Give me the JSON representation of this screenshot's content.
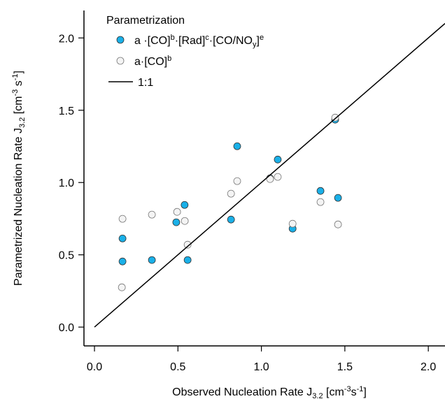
{
  "chart_data": {
    "type": "scatter",
    "xlabel": [
      {
        "text": "Observed Nucleation Rate J"
      },
      {
        "text": "3.2",
        "shift": "sub"
      },
      {
        "text": " [cm"
      },
      {
        "text": "-3",
        "shift": "super"
      },
      {
        "text": "s"
      },
      {
        "text": "-1",
        "shift": "super"
      },
      {
        "text": "]"
      }
    ],
    "ylabel": [
      {
        "text": "Parametrized Nucleation Rate J"
      },
      {
        "text": "3.2",
        "shift": "sub"
      },
      {
        "text": " [cm"
      },
      {
        "text": "-3",
        "shift": "super"
      },
      {
        "text": " s"
      },
      {
        "text": "-1",
        "shift": "super"
      },
      {
        "text": "]"
      }
    ],
    "xlim": [
      -0.063,
      2.1
    ],
    "ylim": [
      -0.13,
      2.19
    ],
    "xticks": [
      {
        "value": 0,
        "label": "0.0"
      },
      0.5,
      {
        "value": 1,
        "label": "1.0"
      },
      1.5,
      {
        "value": 2,
        "label": "2.0"
      }
    ],
    "yticks": [
      {
        "value": 0,
        "label": "0.0"
      },
      0.5,
      {
        "value": 1,
        "label": "1.0"
      },
      1.5,
      {
        "value": 2,
        "label": "2.0"
      }
    ],
    "legend_title": "Parametrization",
    "legend": "upper left",
    "series": [
      {
        "name": [
          {
            "text": "a ·[CO]"
          },
          {
            "text": "b",
            "shift": "super"
          },
          {
            "text": "·[Rad]"
          },
          {
            "text": "c",
            "shift": "super"
          },
          {
            "text": "·[CO/NO"
          },
          {
            "text": "y",
            "shift": "sub"
          },
          {
            "text": "]"
          },
          {
            "text": "e",
            "shift": "super"
          }
        ],
        "kind": "marker",
        "color": "#1ab0e8",
        "edge": "#333333",
        "x": [
          0.168,
          0.168,
          0.344,
          0.49,
          0.54,
          0.558,
          0.818,
          0.855,
          1.098,
          1.052,
          1.187,
          1.354,
          1.459,
          1.442
        ],
        "values": [
          0.613,
          0.454,
          0.464,
          0.725,
          0.845,
          0.464,
          0.744,
          1.251,
          1.159,
          1.029,
          0.681,
          0.942,
          0.894,
          1.435
        ]
      },
      {
        "name": [
          {
            "text": "a·[CO]"
          },
          {
            "text": "b",
            "shift": "super"
          }
        ],
        "kind": "marker",
        "color": "#f4f4f4",
        "edge": "#777777",
        "x": [
          0.164,
          0.168,
          0.344,
          0.495,
          0.541,
          0.558,
          0.818,
          0.855,
          1.052,
          1.098,
          1.187,
          1.354,
          1.459,
          1.442
        ],
        "values": [
          0.275,
          0.749,
          0.778,
          0.797,
          0.734,
          0.57,
          0.923,
          1.01,
          1.024,
          1.039,
          0.715,
          0.865,
          0.71,
          1.449
        ]
      },
      {
        "name": [
          {
            "text": "1:1"
          }
        ],
        "kind": "line",
        "color": "#000000",
        "x": [
          0,
          2.1
        ],
        "values": [
          0,
          2.1
        ]
      }
    ]
  }
}
